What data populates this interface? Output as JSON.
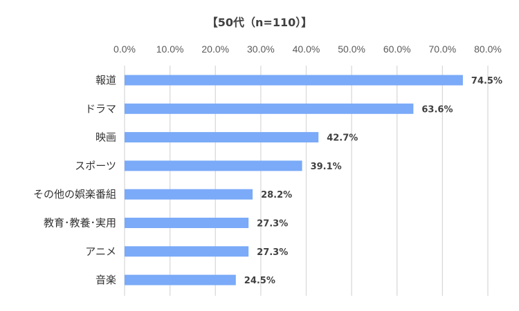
{
  "chart_data": {
    "type": "bar",
    "orientation": "horizontal",
    "title": "【50代（n=110）】",
    "categories": [
      "報道",
      "ドラマ",
      "映画",
      "スポーツ",
      "その他の娯楽番組",
      "教育･教養･実用",
      "アニメ",
      "音楽"
    ],
    "values": [
      74.5,
      63.6,
      42.7,
      39.1,
      28.2,
      27.3,
      27.3,
      24.5
    ],
    "data_labels": [
      "74.5%",
      "63.6%",
      "42.7%",
      "39.1%",
      "28.2%",
      "27.3%",
      "27.3%",
      "24.5%"
    ],
    "xlim": [
      0,
      80
    ],
    "x_ticks": [
      0,
      10,
      20,
      30,
      40,
      50,
      60,
      70,
      80
    ],
    "x_tick_labels": [
      "0.0%",
      "10.0%",
      "20.0%",
      "30.0%",
      "40.0%",
      "50.0%",
      "60.0%",
      "70.0%",
      "80.0%"
    ],
    "x_axis_position": "top",
    "grid": true,
    "legend": "none",
    "bar_color": "#7aaaf8"
  }
}
